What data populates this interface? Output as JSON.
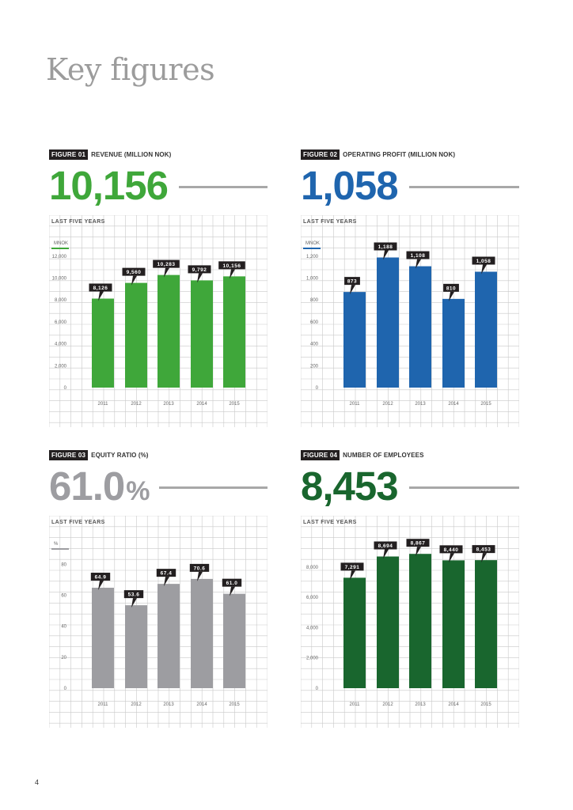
{
  "page": {
    "title": "Key figures",
    "page_number": "4"
  },
  "panels": [
    {
      "tag": "FIGURE 01",
      "title": "REVENUE (MILLION NOK)",
      "big_value": "10,156",
      "big_suffix": "",
      "color": "#3fa73a",
      "chart_data": {
        "type": "bar",
        "title": "LAST FIVE YEARS",
        "unit_label": "MNOK",
        "categories": [
          "2011",
          "2012",
          "2013",
          "2014",
          "2015"
        ],
        "values": [
          8126,
          9560,
          10283,
          9792,
          10156
        ],
        "data_labels": [
          "8,126",
          "9,560",
          "10,283",
          "9,792",
          "10,156"
        ],
        "yticks": [
          0,
          2000,
          4000,
          6000,
          8000,
          10000,
          12000
        ],
        "ytick_labels": [
          "0",
          "2,000",
          "4,000",
          "6,000",
          "8,000",
          "10,000",
          "12,000"
        ],
        "ylim": [
          0,
          13000
        ],
        "xlabel": "",
        "ylabel": "MNOK"
      }
    },
    {
      "tag": "FIGURE 02",
      "title": "OPERATING PROFIT (MILLION NOK)",
      "big_value": "1,058",
      "big_suffix": "",
      "color": "#1f65ae",
      "chart_data": {
        "type": "bar",
        "title": "LAST FIVE YEARS",
        "unit_label": "MNOK",
        "categories": [
          "2011",
          "2012",
          "2013",
          "2014",
          "2015"
        ],
        "values": [
          873,
          1188,
          1108,
          810,
          1058
        ],
        "data_labels": [
          "873",
          "1,188",
          "1,108",
          "810",
          "1,058"
        ],
        "yticks": [
          0,
          200,
          400,
          600,
          800,
          1000,
          1200
        ],
        "ytick_labels": [
          "0",
          "200",
          "400",
          "600",
          "800",
          "1,000",
          "1,200"
        ],
        "ylim": [
          0,
          1300
        ],
        "xlabel": "",
        "ylabel": "MNOK"
      }
    },
    {
      "tag": "FIGURE 03",
      "title": "EQUITY RATIO (%)",
      "big_value": "61.0",
      "big_suffix": "%",
      "color": "#9d9da1",
      "chart_data": {
        "type": "bar",
        "title": "LAST FIVE YEARS",
        "unit_label": "%",
        "categories": [
          "2011",
          "2012",
          "2013",
          "2014",
          "2015"
        ],
        "values": [
          64.9,
          53.6,
          67.4,
          70.6,
          61.0
        ],
        "data_labels": [
          "64.9",
          "53.6",
          "67.4",
          "70.6",
          "61.0"
        ],
        "yticks": [
          0,
          20,
          40,
          60,
          80
        ],
        "ytick_labels": [
          "0",
          "20",
          "40",
          "60",
          "80"
        ],
        "ylim": [
          0,
          92
        ],
        "xlabel": "",
        "ylabel": "%"
      }
    },
    {
      "tag": "FIGURE 04",
      "title": "NUMBER OF EMPLOYEES",
      "big_value": "8,453",
      "big_suffix": "",
      "color": "#19662e",
      "chart_data": {
        "type": "bar",
        "title": "LAST FIVE YEARS",
        "unit_label": "",
        "categories": [
          "2011",
          "2012",
          "2013",
          "2014",
          "2015"
        ],
        "values": [
          7291,
          8694,
          8867,
          8440,
          8453
        ],
        "data_labels": [
          "7,291",
          "8,694",
          "8,867",
          "8,440",
          "8,453"
        ],
        "yticks": [
          0,
          2000,
          4000,
          6000,
          8000
        ],
        "ytick_labels": [
          "0",
          "2,000",
          "4,000",
          "6,000",
          "8,000"
        ],
        "ylim": [
          0,
          9400
        ],
        "xlabel": "",
        "ylabel": ""
      }
    }
  ]
}
